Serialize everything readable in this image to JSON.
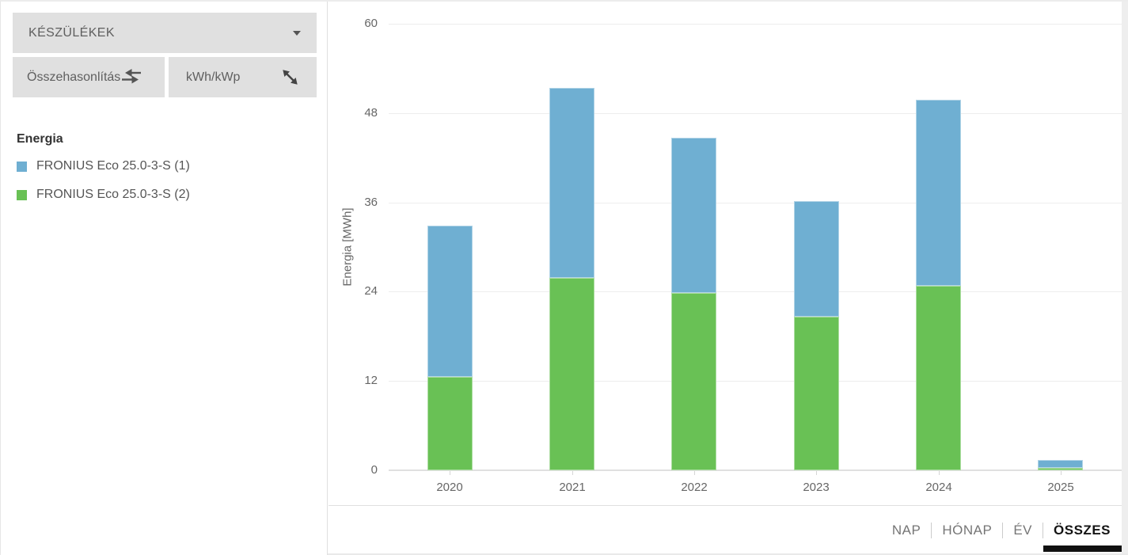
{
  "sidebar": {
    "devices_dropdown": {
      "label": "KÉSZÜLÉKEK"
    },
    "compare_button": {
      "label": "Összehasonlítás"
    },
    "unit_toggle_button": {
      "label": "kWh/kWp"
    },
    "legend": {
      "title": "Energia",
      "items": [
        {
          "label": "FRONIUS Eco 25.0-3-S (1)",
          "color": "#6fafd2"
        },
        {
          "label": "FRONIUS Eco 25.0-3-S (2)",
          "color": "#69c155"
        }
      ]
    }
  },
  "chart_data": {
    "type": "bar",
    "stacked": true,
    "title": "",
    "xlabel": "",
    "ylabel": "Energia [MWh]",
    "ylim": [
      0,
      60
    ],
    "yticks": [
      0,
      12,
      24,
      36,
      48,
      60
    ],
    "grid": true,
    "legend_position": "left-panel",
    "categories": [
      "2020",
      "2021",
      "2022",
      "2023",
      "2024",
      "2025"
    ],
    "series": [
      {
        "name": "FRONIUS Eco 25.0-3-S (1)",
        "color": "#6fafd2",
        "stack_position": "top",
        "values": [
          20.3,
          25.5,
          20.9,
          15.5,
          25.0,
          1.1
        ]
      },
      {
        "name": "FRONIUS Eco 25.0-3-S (2)",
        "color": "#69c155",
        "stack_position": "bottom",
        "values": [
          12.6,
          25.8,
          23.8,
          20.6,
          24.8,
          0.3
        ]
      }
    ],
    "stack_totals": [
      32.9,
      51.3,
      44.7,
      36.1,
      49.8,
      1.4
    ]
  },
  "period_tabs": {
    "items": [
      {
        "label": "NAP",
        "active": false
      },
      {
        "label": "HÓNAP",
        "active": false
      },
      {
        "label": "ÉV",
        "active": false
      },
      {
        "label": "ÖSSZES",
        "active": true
      }
    ]
  },
  "colors": {
    "accent_blue": "#6fafd2",
    "accent_green": "#69c155",
    "button_bg": "#e0e0e0",
    "grid_line": "#ededed",
    "axis_line": "#e0e0e0",
    "tab_active": "#141414",
    "tab_inactive": "#757575",
    "text_muted": "#666666"
  }
}
